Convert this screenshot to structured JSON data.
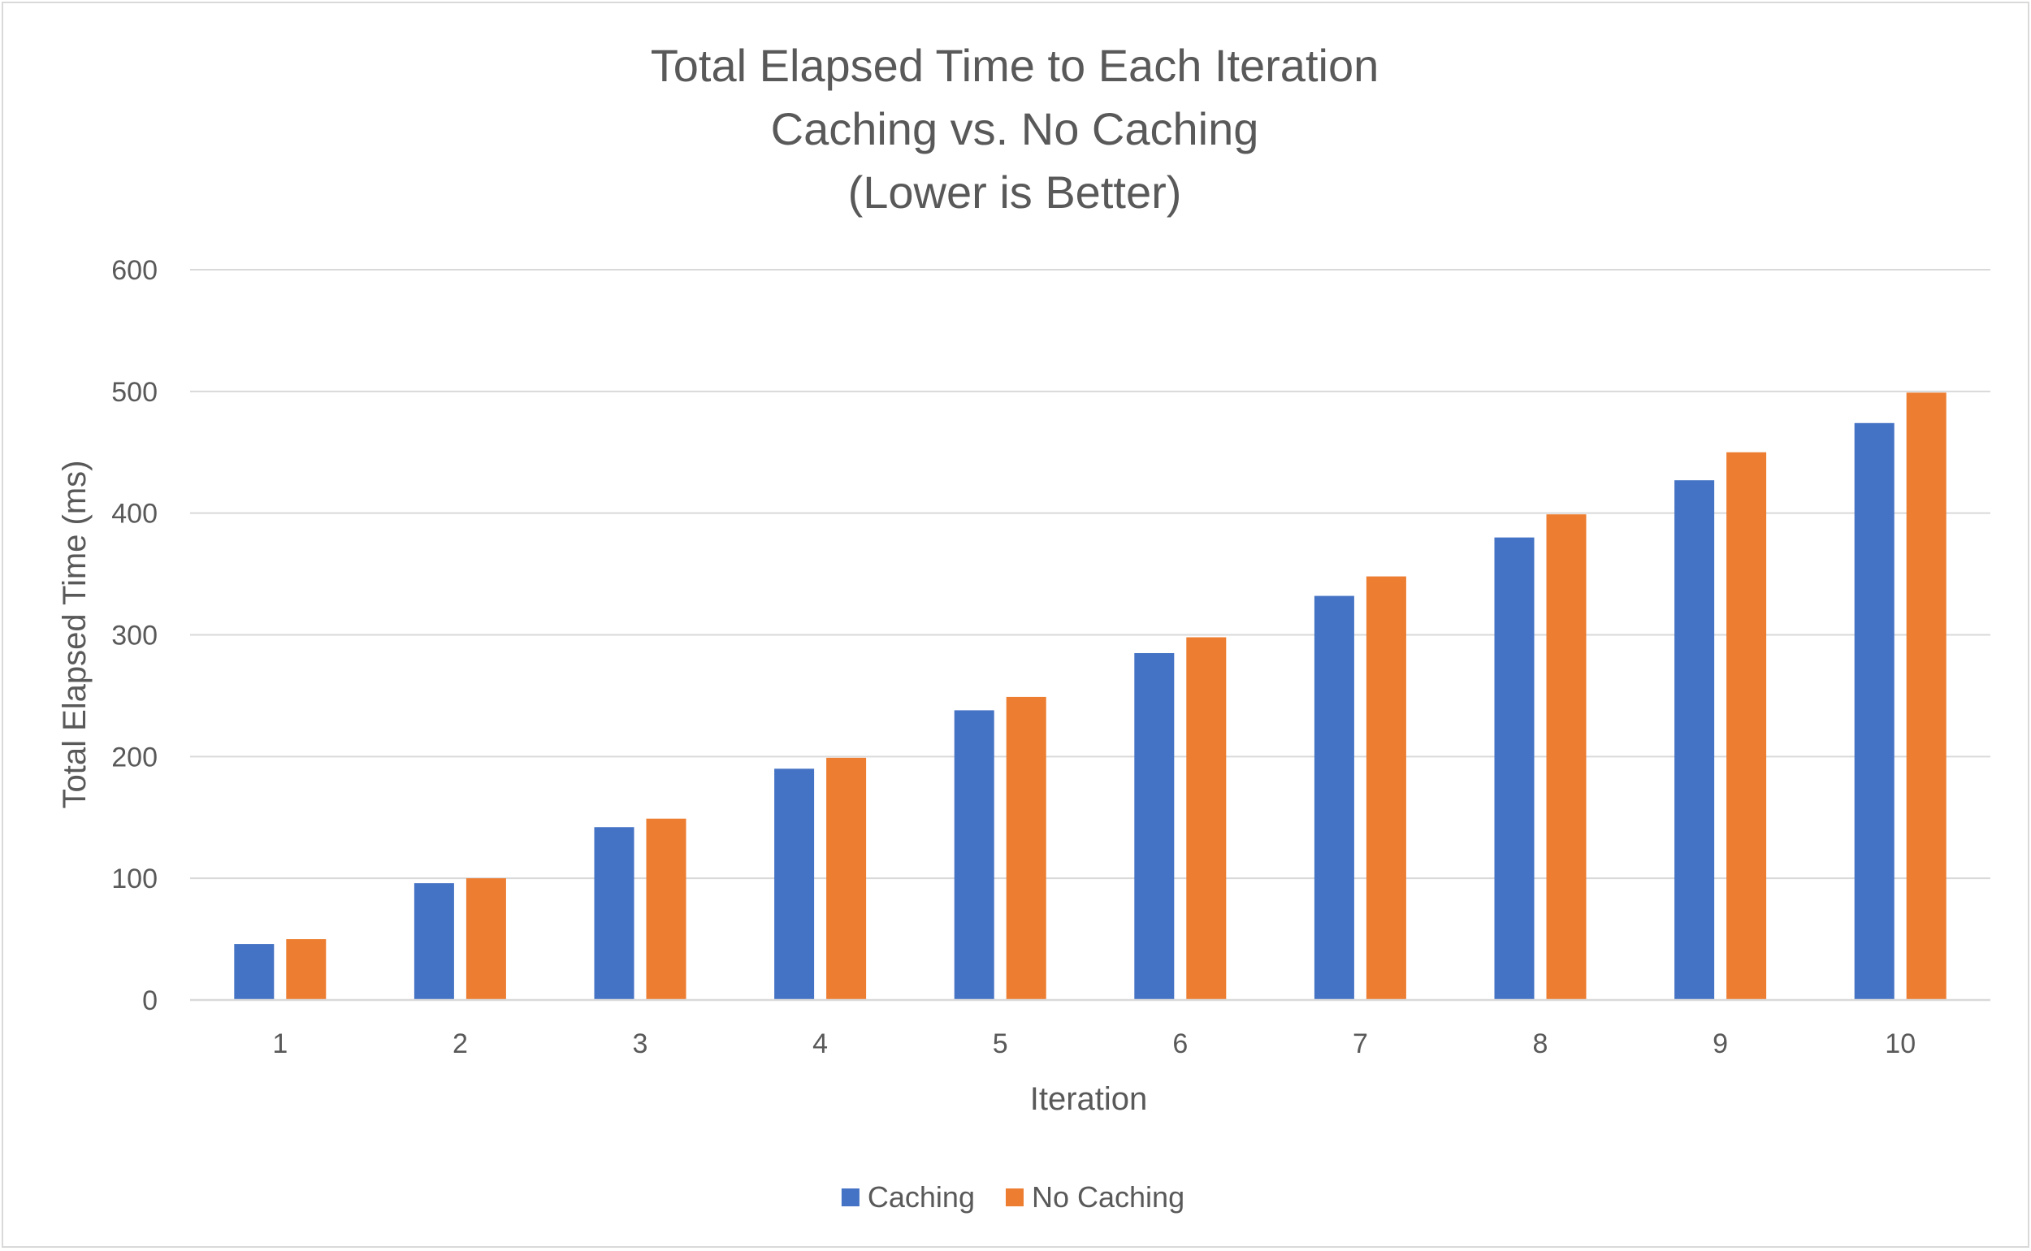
{
  "chart_data": {
    "type": "bar",
    "title_lines": [
      "Total Elapsed Time to Each Iteration",
      "Caching vs. No Caching",
      "(Lower is Better)"
    ],
    "xlabel": "Iteration",
    "ylabel": "Total Elapsed Time (ms)",
    "categories": [
      "1",
      "2",
      "3",
      "4",
      "5",
      "6",
      "7",
      "8",
      "9",
      "10"
    ],
    "ylim": [
      0,
      600
    ],
    "yticks": [
      0,
      100,
      200,
      300,
      400,
      500,
      600
    ],
    "grid": true,
    "legend_position": "bottom",
    "series": [
      {
        "name": "Caching",
        "color": "#4472c4",
        "values": [
          46,
          96,
          142,
          190,
          238,
          285,
          332,
          380,
          427,
          474
        ]
      },
      {
        "name": "No Caching",
        "color": "#ed7d31",
        "values": [
          50,
          100,
          149,
          199,
          249,
          298,
          348,
          399,
          450,
          499
        ]
      }
    ]
  }
}
